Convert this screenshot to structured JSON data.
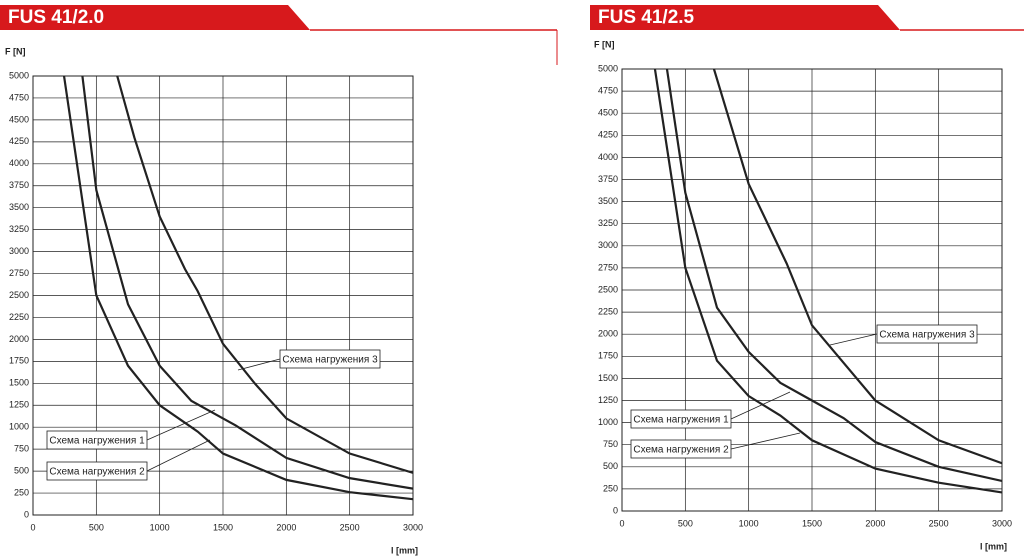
{
  "chart_data": [
    {
      "type": "line",
      "title": "FUS 41/2.0",
      "x_label": "l [mm]",
      "y_label": "F [N]",
      "xlim": [
        0,
        3000
      ],
      "ylim": [
        0,
        5000
      ],
      "xticks": [
        0,
        500,
        1000,
        1500,
        2000,
        2500,
        3000
      ],
      "yticks": [
        0,
        250,
        500,
        750,
        1000,
        1250,
        1500,
        1750,
        2000,
        2250,
        2500,
        2750,
        3000,
        3250,
        3500,
        3750,
        4000,
        4250,
        4500,
        4750,
        5000
      ],
      "grid": true,
      "series": [
        {
          "name": "Схема нагружения 1",
          "color": "#222222",
          "x": [
            390,
            500,
            750,
            1000,
            1250,
            1500,
            1600,
            2000,
            2500,
            3000
          ],
          "values": [
            5000,
            3700,
            2400,
            1700,
            1300,
            1100,
            1020,
            650,
            420,
            300
          ]
        },
        {
          "name": "Схема нагружения 2",
          "color": "#222222",
          "x": [
            245,
            500,
            750,
            1000,
            1250,
            1300,
            1500,
            2000,
            2500,
            3000
          ],
          "values": [
            5000,
            2500,
            1700,
            1250,
            1000,
            950,
            700,
            400,
            260,
            180
          ]
        },
        {
          "name": "Схема нагружения 3",
          "color": "#222222",
          "x": [
            665,
            800,
            1000,
            1200,
            1300,
            1500,
            1750,
            2000,
            2500,
            3000
          ],
          "values": [
            5000,
            4300,
            3400,
            2800,
            2550,
            1950,
            1500,
            1100,
            700,
            480
          ]
        }
      ]
    },
    {
      "type": "line",
      "title": "FUS 41/2.5",
      "x_label": "l [mm]",
      "y_label": "F [N]",
      "xlim": [
        0,
        3000
      ],
      "ylim": [
        0,
        5000
      ],
      "xticks": [
        0,
        500,
        1000,
        1500,
        2000,
        2500,
        3000
      ],
      "yticks": [
        0,
        250,
        500,
        750,
        1000,
        1250,
        1500,
        1750,
        2000,
        2250,
        2500,
        2750,
        3000,
        3250,
        3500,
        3750,
        4000,
        4250,
        4500,
        4750,
        5000
      ],
      "grid": true,
      "series": [
        {
          "name": "Схема нагружения 1",
          "color": "#222222",
          "x": [
            355,
            500,
            750,
            1000,
            1250,
            1500,
            1750,
            2000,
            2500,
            3000
          ],
          "values": [
            5000,
            3600,
            2300,
            1800,
            1450,
            1250,
            1050,
            780,
            500,
            340
          ]
        },
        {
          "name": "Схема нагружения 2",
          "color": "#222222",
          "x": [
            260,
            500,
            750,
            1000,
            1250,
            1500,
            2000,
            2500,
            3000
          ],
          "values": [
            5000,
            2750,
            1700,
            1300,
            1080,
            800,
            480,
            320,
            210
          ]
        },
        {
          "name": "Схема нагружения 3",
          "color": "#222222",
          "x": [
            726,
            1000,
            1250,
            1300,
            1500,
            2000,
            2500,
            3000
          ],
          "values": [
            5000,
            3700,
            2950,
            2800,
            2100,
            1250,
            800,
            540
          ]
        }
      ]
    }
  ]
}
